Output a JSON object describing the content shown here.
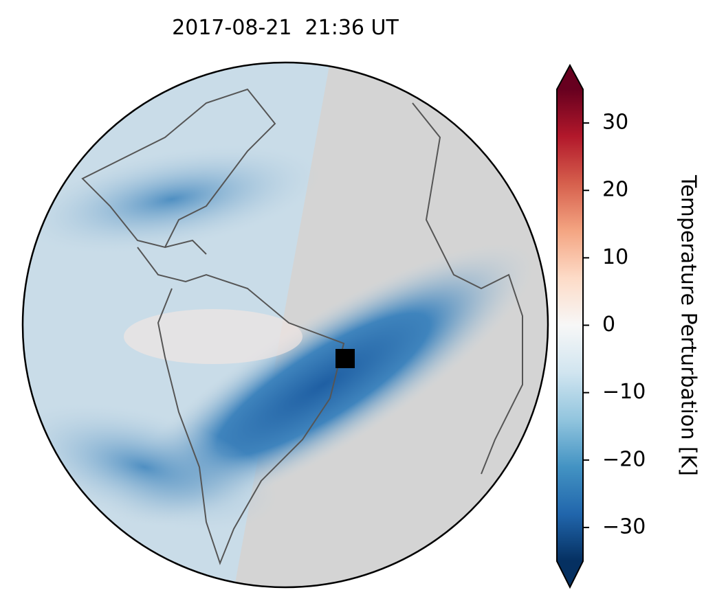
{
  "chart_data": {
    "type": "map",
    "title": "2017-08-21  21:36 UT",
    "colorbar": {
      "label": "Temperature Perturbation [K]",
      "lim": [
        -35,
        35
      ],
      "extend": "both",
      "ticks": [
        {
          "value": -30,
          "label": "−30"
        },
        {
          "value": -20,
          "label": "−20"
        },
        {
          "value": -10,
          "label": "−10"
        },
        0,
        10,
        20,
        30
      ]
    }
  }
}
